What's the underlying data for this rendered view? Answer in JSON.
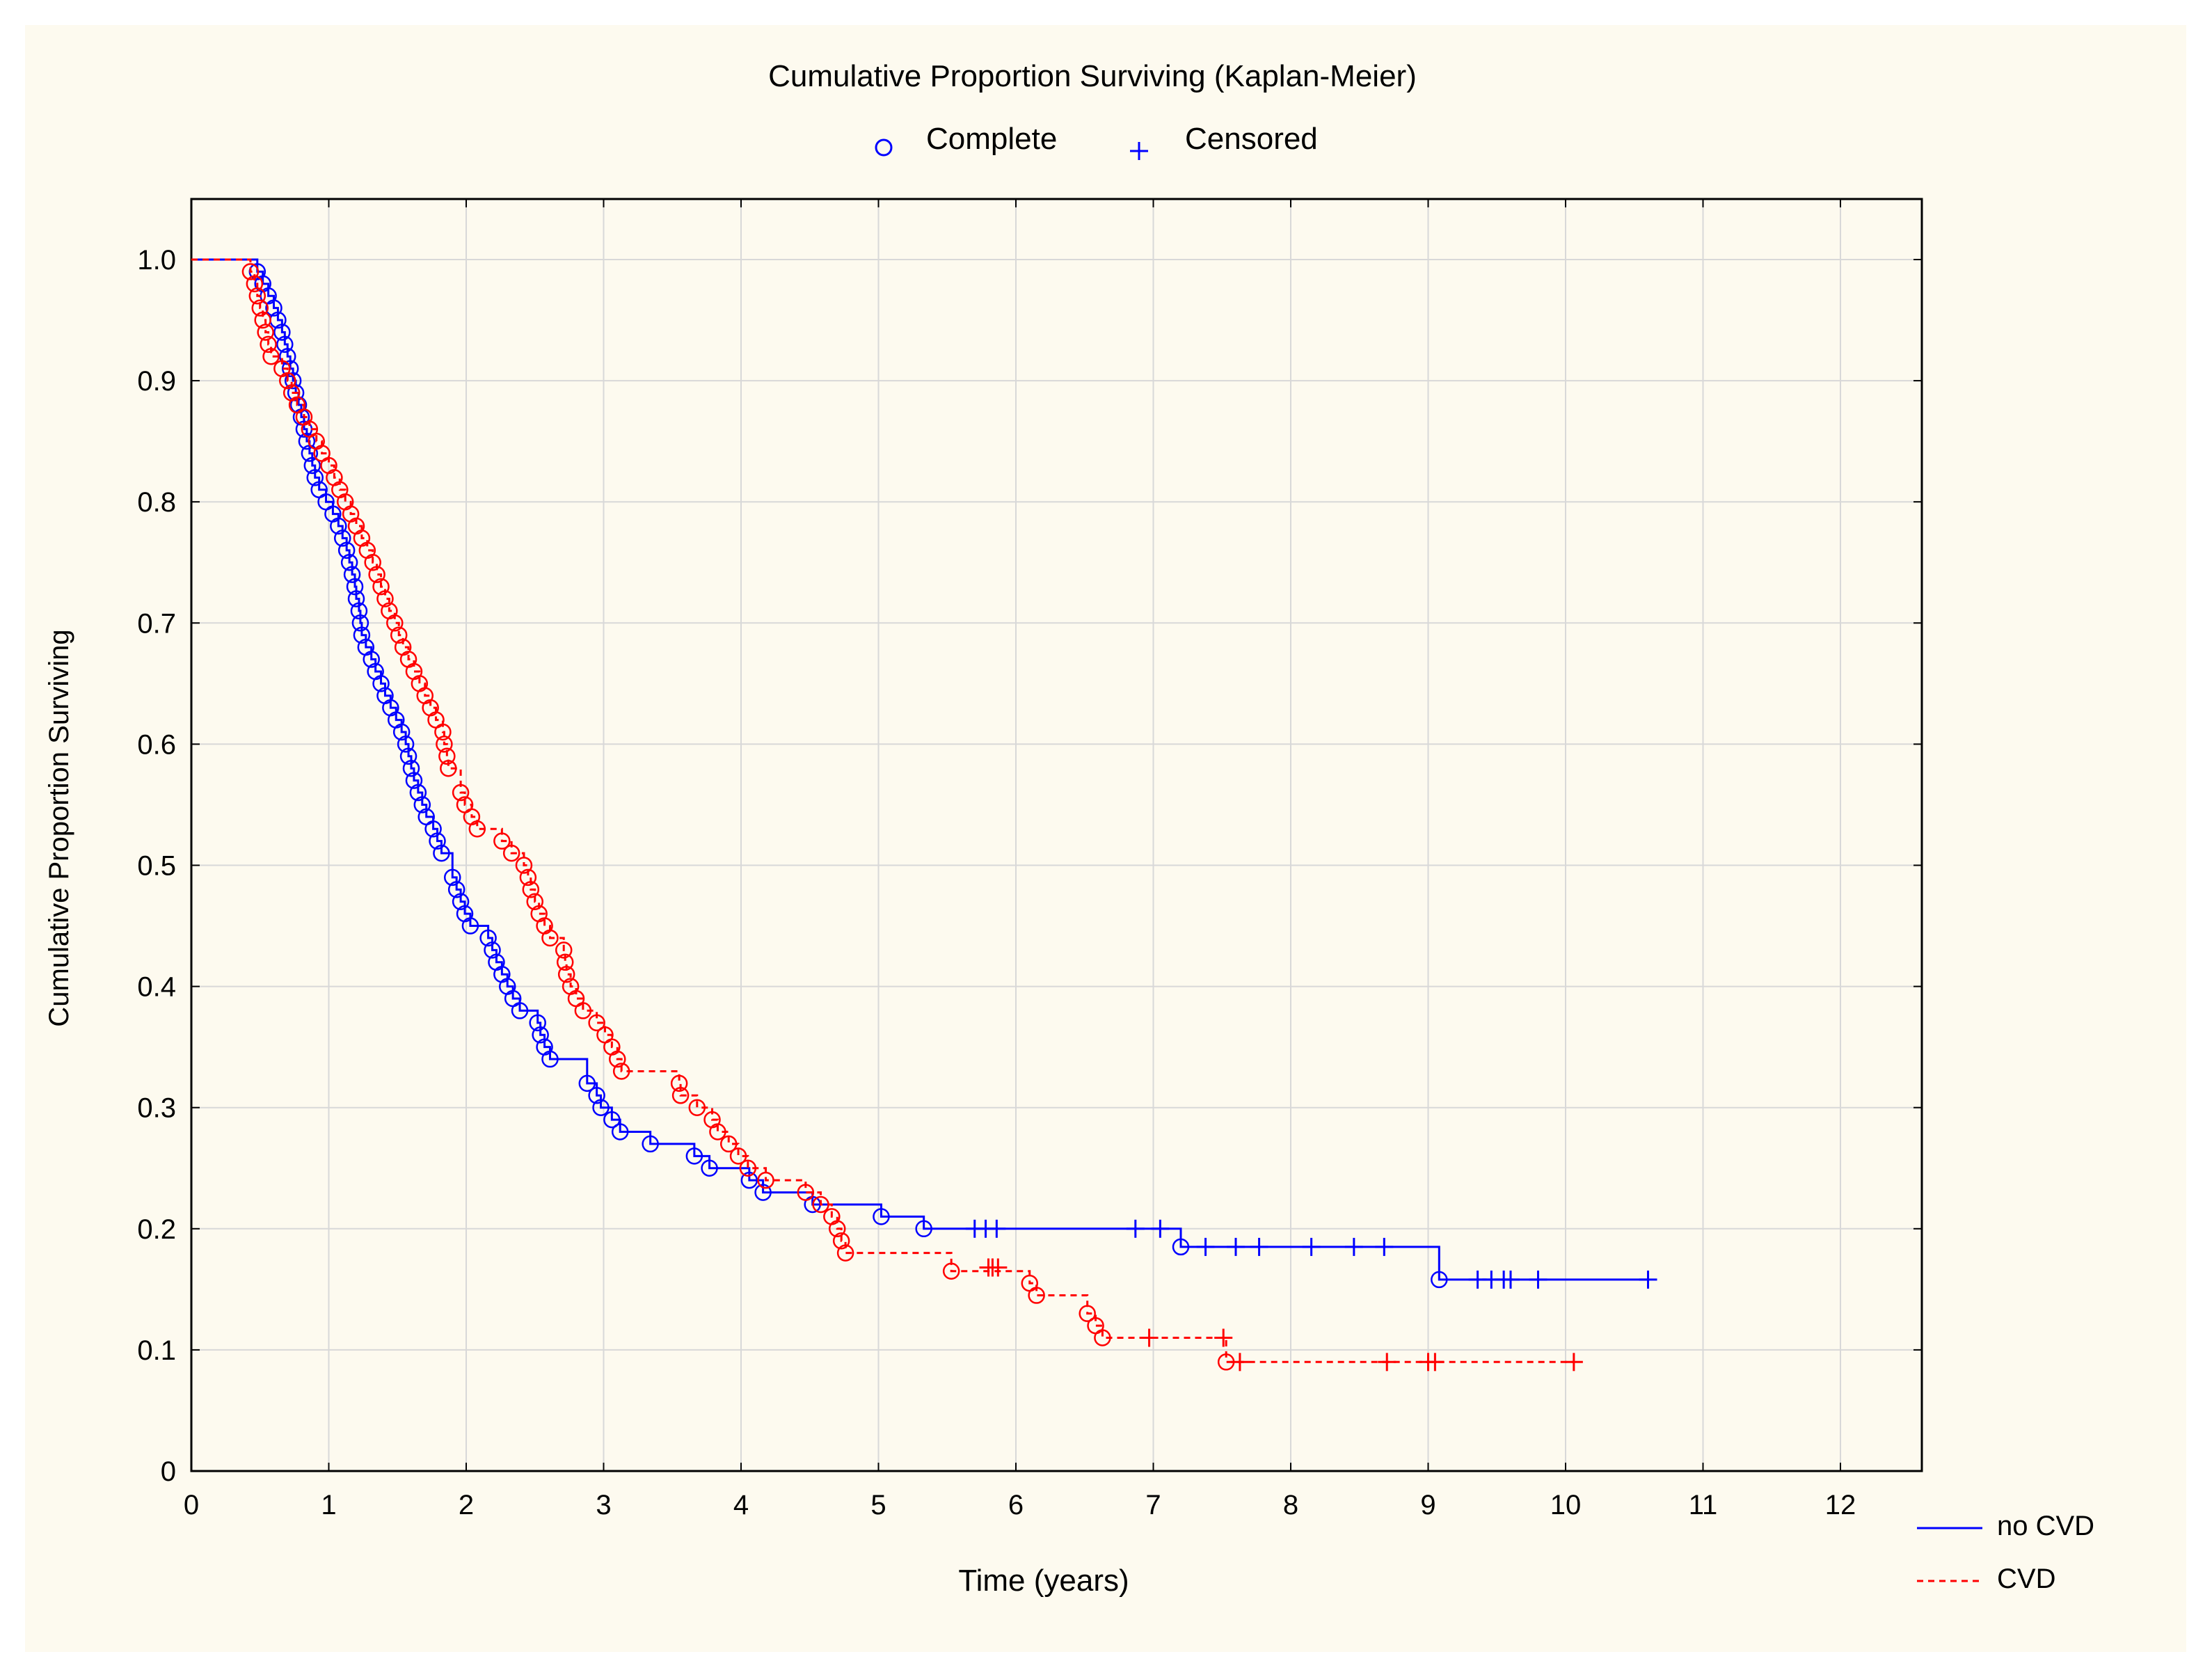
{
  "chart_data": {
    "type": "line",
    "subtype": "kaplan-meier-step",
    "title": "Cumulative Proportion Surviving (Kaplan-Meier)",
    "xlabel": "Time (years)",
    "ylabel": "Cumulative Proportion Surviving",
    "xlim": [
      0,
      12.3
    ],
    "ylim": [
      0,
      1.05
    ],
    "xticks": [
      0,
      1,
      2,
      3,
      4,
      5,
      6,
      7,
      8,
      9,
      10,
      11,
      12
    ],
    "yticks": [
      0,
      0.1,
      0.2,
      0.3,
      0.4,
      0.5,
      0.6,
      0.7,
      0.8,
      0.9,
      1.0
    ],
    "xtick_labels": [
      "0",
      "1",
      "2",
      "3",
      "4",
      "5",
      "6",
      "7",
      "8",
      "9",
      "10",
      "11",
      "12"
    ],
    "ytick_labels": [
      "0",
      "0.1",
      "0.2",
      "0.3",
      "0.4",
      "0.5",
      "0.6",
      "0.7",
      "0.8",
      "0.9",
      "1.0"
    ],
    "grid": true,
    "marker_legend": {
      "position": "top-center",
      "items": [
        {
          "marker": "circle",
          "label": "Complete"
        },
        {
          "marker": "plus",
          "label": "Censored"
        }
      ]
    },
    "series_legend": {
      "position": "bottom-right",
      "items": [
        {
          "label": "no CVD",
          "style": "solid",
          "color": "#0000ff"
        },
        {
          "label": "CVD",
          "style": "dashed",
          "color": "#ff0000"
        }
      ]
    },
    "series": [
      {
        "name": "no CVD",
        "color": "#0000ff",
        "style": "solid",
        "complete": [
          [
            0.48,
            0.99
          ],
          [
            0.52,
            0.98
          ],
          [
            0.56,
            0.97
          ],
          [
            0.6,
            0.96
          ],
          [
            0.63,
            0.95
          ],
          [
            0.66,
            0.94
          ],
          [
            0.68,
            0.93
          ],
          [
            0.7,
            0.92
          ],
          [
            0.72,
            0.91
          ],
          [
            0.74,
            0.9
          ],
          [
            0.76,
            0.89
          ],
          [
            0.78,
            0.88
          ],
          [
            0.8,
            0.87
          ],
          [
            0.82,
            0.86
          ],
          [
            0.84,
            0.85
          ],
          [
            0.86,
            0.84
          ],
          [
            0.88,
            0.83
          ],
          [
            0.9,
            0.82
          ],
          [
            0.93,
            0.81
          ],
          [
            0.98,
            0.8
          ],
          [
            1.03,
            0.79
          ],
          [
            1.07,
            0.78
          ],
          [
            1.1,
            0.77
          ],
          [
            1.13,
            0.76
          ],
          [
            1.15,
            0.75
          ],
          [
            1.17,
            0.74
          ],
          [
            1.19,
            0.73
          ],
          [
            1.2,
            0.72
          ],
          [
            1.22,
            0.71
          ],
          [
            1.23,
            0.7
          ],
          [
            1.24,
            0.69
          ],
          [
            1.27,
            0.68
          ],
          [
            1.31,
            0.67
          ],
          [
            1.34,
            0.66
          ],
          [
            1.38,
            0.65
          ],
          [
            1.41,
            0.64
          ],
          [
            1.45,
            0.63
          ],
          [
            1.49,
            0.62
          ],
          [
            1.53,
            0.61
          ],
          [
            1.56,
            0.6
          ],
          [
            1.58,
            0.59
          ],
          [
            1.6,
            0.58
          ],
          [
            1.62,
            0.57
          ],
          [
            1.65,
            0.56
          ],
          [
            1.68,
            0.55
          ],
          [
            1.71,
            0.54
          ],
          [
            1.76,
            0.53
          ],
          [
            1.79,
            0.52
          ],
          [
            1.82,
            0.51
          ],
          [
            1.9,
            0.49
          ],
          [
            1.93,
            0.48
          ],
          [
            1.96,
            0.47
          ],
          [
            1.99,
            0.46
          ],
          [
            2.03,
            0.45
          ],
          [
            2.16,
            0.44
          ],
          [
            2.19,
            0.43
          ],
          [
            2.22,
            0.42
          ],
          [
            2.26,
            0.41
          ],
          [
            2.3,
            0.4
          ],
          [
            2.34,
            0.39
          ],
          [
            2.39,
            0.38
          ],
          [
            2.52,
            0.37
          ],
          [
            2.54,
            0.36
          ],
          [
            2.57,
            0.35
          ],
          [
            2.61,
            0.34
          ],
          [
            2.88,
            0.32
          ],
          [
            2.95,
            0.31
          ],
          [
            2.98,
            0.3
          ],
          [
            3.06,
            0.29
          ],
          [
            3.12,
            0.28
          ],
          [
            3.34,
            0.27
          ],
          [
            3.66,
            0.26
          ],
          [
            3.77,
            0.25
          ],
          [
            4.06,
            0.24
          ],
          [
            4.16,
            0.23
          ],
          [
            4.52,
            0.22
          ],
          [
            5.02,
            0.21
          ],
          [
            5.33,
            0.2
          ],
          [
            7.2,
            0.185
          ],
          [
            9.08,
            0.158
          ]
        ],
        "censored": [
          [
            5.7,
            0.2
          ],
          [
            5.78,
            0.2
          ],
          [
            5.86,
            0.2
          ],
          [
            6.87,
            0.2
          ],
          [
            7.05,
            0.2
          ],
          [
            7.38,
            0.185
          ],
          [
            7.6,
            0.185
          ],
          [
            7.77,
            0.185
          ],
          [
            8.15,
            0.185
          ],
          [
            8.46,
            0.185
          ],
          [
            8.68,
            0.185
          ],
          [
            9.36,
            0.158
          ],
          [
            9.46,
            0.158
          ],
          [
            9.55,
            0.158
          ],
          [
            9.6,
            0.158
          ],
          [
            9.8,
            0.158
          ],
          [
            10.6,
            0.158
          ]
        ]
      },
      {
        "name": "CVD",
        "color": "#ff0000",
        "style": "dashed",
        "complete": [
          [
            0.43,
            0.99
          ],
          [
            0.46,
            0.98
          ],
          [
            0.48,
            0.97
          ],
          [
            0.5,
            0.96
          ],
          [
            0.52,
            0.95
          ],
          [
            0.54,
            0.94
          ],
          [
            0.56,
            0.93
          ],
          [
            0.58,
            0.92
          ],
          [
            0.66,
            0.91
          ],
          [
            0.7,
            0.9
          ],
          [
            0.73,
            0.89
          ],
          [
            0.77,
            0.88
          ],
          [
            0.82,
            0.87
          ],
          [
            0.86,
            0.86
          ],
          [
            0.91,
            0.85
          ],
          [
            0.95,
            0.84
          ],
          [
            1.0,
            0.83
          ],
          [
            1.04,
            0.82
          ],
          [
            1.08,
            0.81
          ],
          [
            1.12,
            0.8
          ],
          [
            1.16,
            0.79
          ],
          [
            1.2,
            0.78
          ],
          [
            1.24,
            0.77
          ],
          [
            1.28,
            0.76
          ],
          [
            1.32,
            0.75
          ],
          [
            1.35,
            0.74
          ],
          [
            1.38,
            0.73
          ],
          [
            1.41,
            0.72
          ],
          [
            1.44,
            0.71
          ],
          [
            1.48,
            0.7
          ],
          [
            1.51,
            0.69
          ],
          [
            1.54,
            0.68
          ],
          [
            1.58,
            0.67
          ],
          [
            1.62,
            0.66
          ],
          [
            1.66,
            0.65
          ],
          [
            1.7,
            0.64
          ],
          [
            1.74,
            0.63
          ],
          [
            1.78,
            0.62
          ],
          [
            1.83,
            0.61
          ],
          [
            1.84,
            0.6
          ],
          [
            1.86,
            0.59
          ],
          [
            1.87,
            0.58
          ],
          [
            1.96,
            0.56
          ],
          [
            1.99,
            0.55
          ],
          [
            2.04,
            0.54
          ],
          [
            2.08,
            0.53
          ],
          [
            2.26,
            0.52
          ],
          [
            2.33,
            0.51
          ],
          [
            2.42,
            0.5
          ],
          [
            2.45,
            0.49
          ],
          [
            2.47,
            0.48
          ],
          [
            2.5,
            0.47
          ],
          [
            2.53,
            0.46
          ],
          [
            2.57,
            0.45
          ],
          [
            2.61,
            0.44
          ],
          [
            2.71,
            0.43
          ],
          [
            2.72,
            0.42
          ],
          [
            2.73,
            0.41
          ],
          [
            2.76,
            0.4
          ],
          [
            2.8,
            0.39
          ],
          [
            2.85,
            0.38
          ],
          [
            2.95,
            0.37
          ],
          [
            3.01,
            0.36
          ],
          [
            3.06,
            0.35
          ],
          [
            3.1,
            0.34
          ],
          [
            3.13,
            0.33
          ],
          [
            3.55,
            0.32
          ],
          [
            3.56,
            0.31
          ],
          [
            3.68,
            0.3
          ],
          [
            3.79,
            0.29
          ],
          [
            3.83,
            0.28
          ],
          [
            3.91,
            0.27
          ],
          [
            3.98,
            0.26
          ],
          [
            4.05,
            0.25
          ],
          [
            4.18,
            0.24
          ],
          [
            4.47,
            0.23
          ],
          [
            4.58,
            0.22
          ],
          [
            4.66,
            0.21
          ],
          [
            4.7,
            0.2
          ],
          [
            4.73,
            0.19
          ],
          [
            4.76,
            0.18
          ],
          [
            5.53,
            0.165
          ],
          [
            6.1,
            0.155
          ],
          [
            6.15,
            0.145
          ],
          [
            6.52,
            0.13
          ],
          [
            6.58,
            0.12
          ],
          [
            6.63,
            0.11
          ],
          [
            7.53,
            0.09
          ]
        ],
        "censored": [
          [
            5.8,
            0.168
          ],
          [
            5.83,
            0.168
          ],
          [
            5.87,
            0.168
          ],
          [
            6.97,
            0.11
          ],
          [
            7.51,
            0.11
          ],
          [
            7.63,
            0.09
          ],
          [
            8.7,
            0.09
          ],
          [
            9.0,
            0.09
          ],
          [
            9.05,
            0.09
          ],
          [
            10.06,
            0.09
          ]
        ]
      }
    ]
  }
}
